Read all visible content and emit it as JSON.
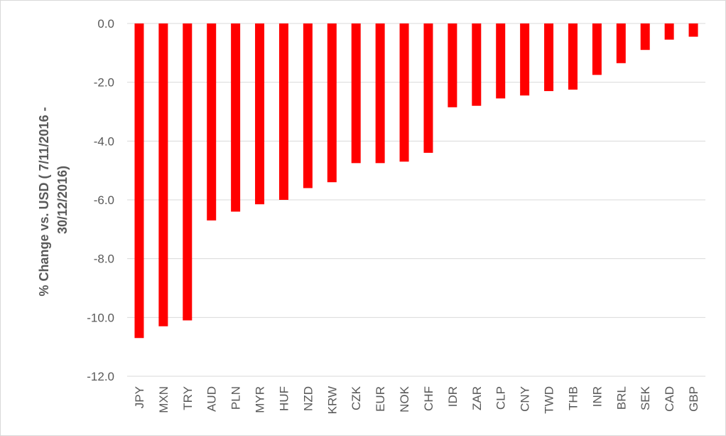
{
  "chart_data": {
    "type": "bar",
    "title": "",
    "xlabel": "",
    "ylabel_lines": [
      "% Change vs. USD ( 7/11/2016 -",
      "30/12/2016)"
    ],
    "categories": [
      "JPY",
      "MXN",
      "TRY",
      "AUD",
      "PLN",
      "MYR",
      "HUF",
      "NZD",
      "KRW",
      "CZK",
      "EUR",
      "NOK",
      "CHF",
      "IDR",
      "ZAR",
      "CLP",
      "CNY",
      "TWD",
      "THB",
      "INR",
      "BRL",
      "SEK",
      "CAD",
      "GBP"
    ],
    "series": [
      {
        "values": [
          -10.7,
          -10.3,
          -10.1,
          -6.7,
          -6.4,
          -6.15,
          -6.0,
          -5.6,
          -5.4,
          -4.75,
          -4.75,
          -4.7,
          -4.4,
          -2.85,
          -2.8,
          -2.55,
          -2.45,
          -2.3,
          -2.25,
          -1.75,
          -1.35,
          -0.9,
          -0.55,
          -0.45
        ],
        "color": "#ff0000"
      }
    ],
    "ylim": [
      -12,
      0
    ],
    "yticks": [
      "0.0",
      "-2.0",
      "-4.0",
      "-6.0",
      "-8.0",
      "-10.0",
      "-12.0"
    ],
    "grid": true,
    "legend": "none"
  }
}
